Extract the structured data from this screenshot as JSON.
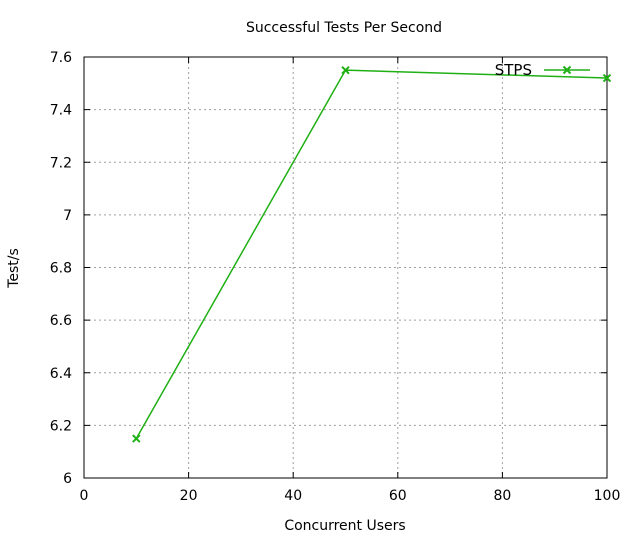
{
  "chart_data": {
    "type": "line",
    "title": "Successful Tests Per Second",
    "xlabel": "Concurrent Users",
    "ylabel": "Test/s",
    "xlim": [
      0,
      100
    ],
    "ylim": [
      6,
      7.6
    ],
    "xticks": [
      0,
      20,
      40,
      60,
      80,
      100
    ],
    "yticks": [
      6,
      6.2,
      6.4,
      6.6,
      6.8,
      7,
      7.2,
      7.4,
      7.6
    ],
    "xtick_labels": [
      "0",
      "20",
      "40",
      "60",
      "80",
      "100"
    ],
    "ytick_labels": [
      "6",
      "6.2",
      "6.4",
      "6.6",
      "6.8",
      "7",
      "7.2",
      "7.4",
      "7.6"
    ],
    "grid": true,
    "legend_position": "top-right",
    "series": [
      {
        "name": "STPS",
        "color": "#1fb014",
        "marker": "x",
        "x": [
          10,
          50,
          100
        ],
        "y": [
          6.15,
          7.55,
          7.52
        ]
      }
    ]
  }
}
